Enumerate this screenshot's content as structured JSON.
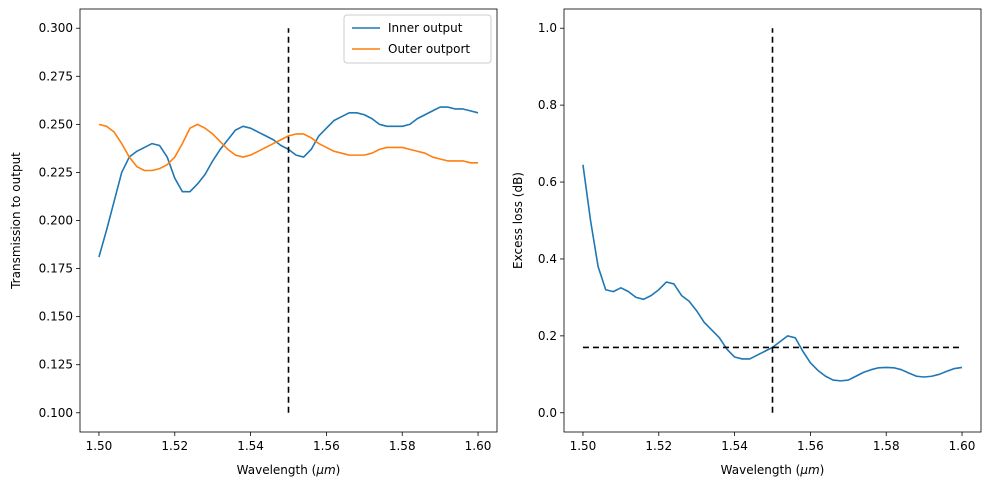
{
  "chart_data": [
    {
      "type": "line",
      "xlabel": "Wavelength ($\\mu m$)",
      "ylabel": "Transmission to output",
      "xlim": [
        1.495,
        1.605
      ],
      "ylim": [
        0.09,
        0.31
      ],
      "xticks": [
        "1.50",
        "1.52",
        "1.54",
        "1.56",
        "1.58",
        "1.60"
      ],
      "xtick_values": [
        1.5,
        1.52,
        1.54,
        1.56,
        1.58,
        1.6
      ],
      "yticks": [
        "0.100",
        "0.125",
        "0.150",
        "0.175",
        "0.200",
        "0.225",
        "0.250",
        "0.275",
        "0.300"
      ],
      "ytick_values": [
        0.1,
        0.125,
        0.15,
        0.175,
        0.2,
        0.225,
        0.25,
        0.275,
        0.3
      ],
      "legend_position": "top-right",
      "series": [
        {
          "name": "Inner output",
          "color": "#1f77b4",
          "x": [
            1.5,
            1.502,
            1.504,
            1.506,
            1.508,
            1.51,
            1.512,
            1.514,
            1.516,
            1.518,
            1.52,
            1.522,
            1.524,
            1.526,
            1.528,
            1.53,
            1.532,
            1.534,
            1.536,
            1.538,
            1.54,
            1.542,
            1.544,
            1.546,
            1.548,
            1.55,
            1.552,
            1.554,
            1.556,
            1.558,
            1.56,
            1.562,
            1.564,
            1.566,
            1.568,
            1.57,
            1.572,
            1.574,
            1.576,
            1.578,
            1.58,
            1.582,
            1.584,
            1.586,
            1.588,
            1.59,
            1.592,
            1.594,
            1.596,
            1.598,
            1.6
          ],
          "y": [
            0.181,
            0.195,
            0.21,
            0.225,
            0.233,
            0.236,
            0.238,
            0.24,
            0.239,
            0.233,
            0.222,
            0.215,
            0.215,
            0.219,
            0.224,
            0.231,
            0.237,
            0.242,
            0.247,
            0.249,
            0.248,
            0.246,
            0.244,
            0.242,
            0.239,
            0.237,
            0.234,
            0.233,
            0.237,
            0.244,
            0.248,
            0.252,
            0.254,
            0.256,
            0.256,
            0.255,
            0.253,
            0.25,
            0.249,
            0.249,
            0.249,
            0.25,
            0.253,
            0.255,
            0.257,
            0.259,
            0.259,
            0.258,
            0.258,
            0.257,
            0.256
          ]
        },
        {
          "name": "Outer outport",
          "color": "#ff7f0e",
          "x": [
            1.5,
            1.502,
            1.504,
            1.506,
            1.508,
            1.51,
            1.512,
            1.514,
            1.516,
            1.518,
            1.52,
            1.522,
            1.524,
            1.526,
            1.528,
            1.53,
            1.532,
            1.534,
            1.536,
            1.538,
            1.54,
            1.542,
            1.544,
            1.546,
            1.548,
            1.55,
            1.552,
            1.554,
            1.556,
            1.558,
            1.56,
            1.562,
            1.564,
            1.566,
            1.568,
            1.57,
            1.572,
            1.574,
            1.576,
            1.578,
            1.58,
            1.582,
            1.584,
            1.586,
            1.588,
            1.59,
            1.592,
            1.594,
            1.596,
            1.598,
            1.6
          ],
          "y": [
            0.25,
            0.249,
            0.246,
            0.24,
            0.233,
            0.228,
            0.226,
            0.226,
            0.227,
            0.229,
            0.233,
            0.24,
            0.248,
            0.25,
            0.248,
            0.245,
            0.241,
            0.237,
            0.234,
            0.233,
            0.234,
            0.236,
            0.238,
            0.24,
            0.242,
            0.244,
            0.245,
            0.245,
            0.243,
            0.24,
            0.238,
            0.236,
            0.235,
            0.234,
            0.234,
            0.234,
            0.235,
            0.237,
            0.238,
            0.238,
            0.238,
            0.237,
            0.236,
            0.235,
            0.233,
            0.232,
            0.231,
            0.231,
            0.231,
            0.23,
            0.23
          ]
        }
      ],
      "reference_lines": [
        {
          "orientation": "vertical",
          "x": 1.55,
          "y_from": 0.1,
          "y_to": 0.3,
          "color": "#000000",
          "style": "dashed"
        }
      ]
    },
    {
      "type": "line",
      "xlabel": "Wavelength ($\\mu m$)",
      "ylabel": "Excess loss (dB)",
      "xlim": [
        1.495,
        1.605
      ],
      "ylim": [
        -0.05,
        1.05
      ],
      "xticks": [
        "1.50",
        "1.52",
        "1.54",
        "1.56",
        "1.58",
        "1.60"
      ],
      "xtick_values": [
        1.5,
        1.52,
        1.54,
        1.56,
        1.58,
        1.6
      ],
      "yticks": [
        "0.0",
        "0.2",
        "0.4",
        "0.6",
        "0.8",
        "1.0"
      ],
      "ytick_values": [
        0.0,
        0.2,
        0.4,
        0.6,
        0.8,
        1.0
      ],
      "series": [
        {
          "color": "#1f77b4",
          "x": [
            1.5,
            1.502,
            1.504,
            1.506,
            1.508,
            1.51,
            1.512,
            1.514,
            1.516,
            1.518,
            1.52,
            1.522,
            1.524,
            1.526,
            1.528,
            1.53,
            1.532,
            1.534,
            1.536,
            1.538,
            1.54,
            1.542,
            1.544,
            1.546,
            1.548,
            1.55,
            1.552,
            1.554,
            1.556,
            1.558,
            1.56,
            1.562,
            1.564,
            1.566,
            1.568,
            1.57,
            1.572,
            1.574,
            1.576,
            1.578,
            1.58,
            1.582,
            1.584,
            1.586,
            1.588,
            1.59,
            1.592,
            1.594,
            1.596,
            1.598,
            1.6
          ],
          "y": [
            0.645,
            0.5,
            0.38,
            0.32,
            0.315,
            0.325,
            0.315,
            0.3,
            0.295,
            0.305,
            0.32,
            0.34,
            0.335,
            0.305,
            0.29,
            0.265,
            0.235,
            0.215,
            0.195,
            0.165,
            0.145,
            0.14,
            0.14,
            0.15,
            0.16,
            0.17,
            0.185,
            0.2,
            0.195,
            0.16,
            0.13,
            0.11,
            0.095,
            0.085,
            0.083,
            0.085,
            0.095,
            0.105,
            0.112,
            0.117,
            0.118,
            0.117,
            0.112,
            0.103,
            0.095,
            0.093,
            0.095,
            0.1,
            0.108,
            0.115,
            0.118
          ]
        }
      ],
      "reference_lines": [
        {
          "orientation": "vertical",
          "x": 1.55,
          "y_from": 0.0,
          "y_to": 1.0,
          "color": "#000000",
          "style": "dashed"
        },
        {
          "orientation": "horizontal",
          "y": 0.17,
          "x_from": 1.5,
          "x_to": 1.6,
          "color": "#000000",
          "style": "dashed"
        }
      ]
    }
  ]
}
